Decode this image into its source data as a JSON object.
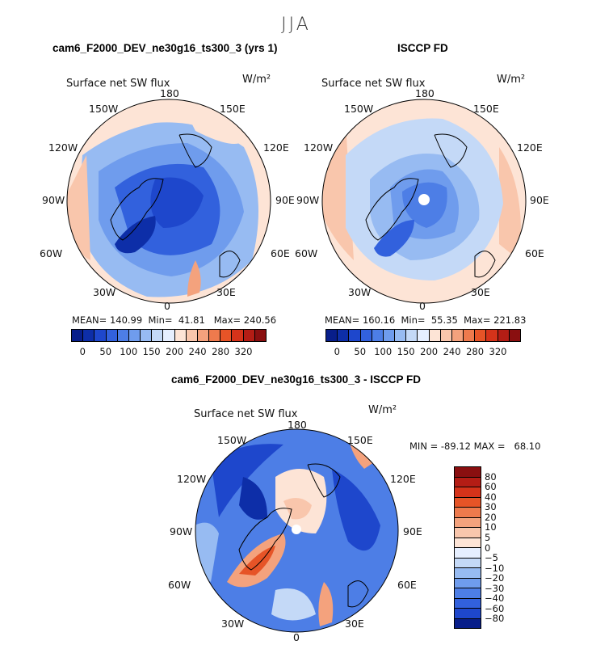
{
  "figure": {
    "season": "JJA"
  },
  "panels": [
    {
      "id": "model",
      "title": "cam6_F2000_DEV_ne30g16_ts300_3 (yrs 1)",
      "variable": "Surface net SW flux",
      "units": "W/m²",
      "stats": "MEAN= 140.99  Min=  41.81   Max= 240.56"
    },
    {
      "id": "obs",
      "title": "ISCCP FD",
      "variable": "Surface net SW flux",
      "units": "W/m²",
      "stats": "MEAN= 160.16  Min=  55.35  Max= 221.83"
    },
    {
      "id": "diff",
      "title": "cam6_F2000_DEV_ne30g16_ts300_3 - ISCCP FD",
      "variable": "Surface net SW flux",
      "units": "W/m²",
      "stats": "MIN = -89.12 MAX =   68.10"
    }
  ],
  "longitude_labels": {
    "top": "180",
    "bottom": "0",
    "left": "90W",
    "right": "90E",
    "upper_left": "150W",
    "upper_right": "150E",
    "mid_upper_left": "120W",
    "mid_upper_right": "120E",
    "mid_lower_left": "60W",
    "mid_lower_right": "60E",
    "lower_left": "30W",
    "lower_right": "30E"
  },
  "colorbars": {
    "absolute": {
      "tick_labels": [
        "0",
        "50",
        "100",
        "150",
        "200",
        "240",
        "280",
        "320"
      ],
      "colors": [
        "#081e8a",
        "#0d2ea8",
        "#1e47cc",
        "#3261dd",
        "#4d7ee6",
        "#6f9ced",
        "#97bbf2",
        "#c4d9f7",
        "#e6efff",
        "#fde4d6",
        "#f9c6ac",
        "#f4a27d",
        "#ee7a4d",
        "#e65427",
        "#d5331a",
        "#b41d15",
        "#8a0f10"
      ]
    },
    "difference": {
      "tick_labels": [
        "80",
        "60",
        "40",
        "30",
        "20",
        "10",
        "5",
        "0",
        "−5",
        "−10",
        "−20",
        "−30",
        "−40",
        "−60",
        "−80"
      ],
      "colors": [
        "#8a0f10",
        "#b41d15",
        "#d5331a",
        "#e65427",
        "#ee7a4d",
        "#f4a27d",
        "#f9c6ac",
        "#fde4d6",
        "#e6efff",
        "#c4d9f7",
        "#97bbf2",
        "#6f9ced",
        "#4d7ee6",
        "#3261dd",
        "#1e47cc",
        "#081e8a"
      ]
    }
  }
}
